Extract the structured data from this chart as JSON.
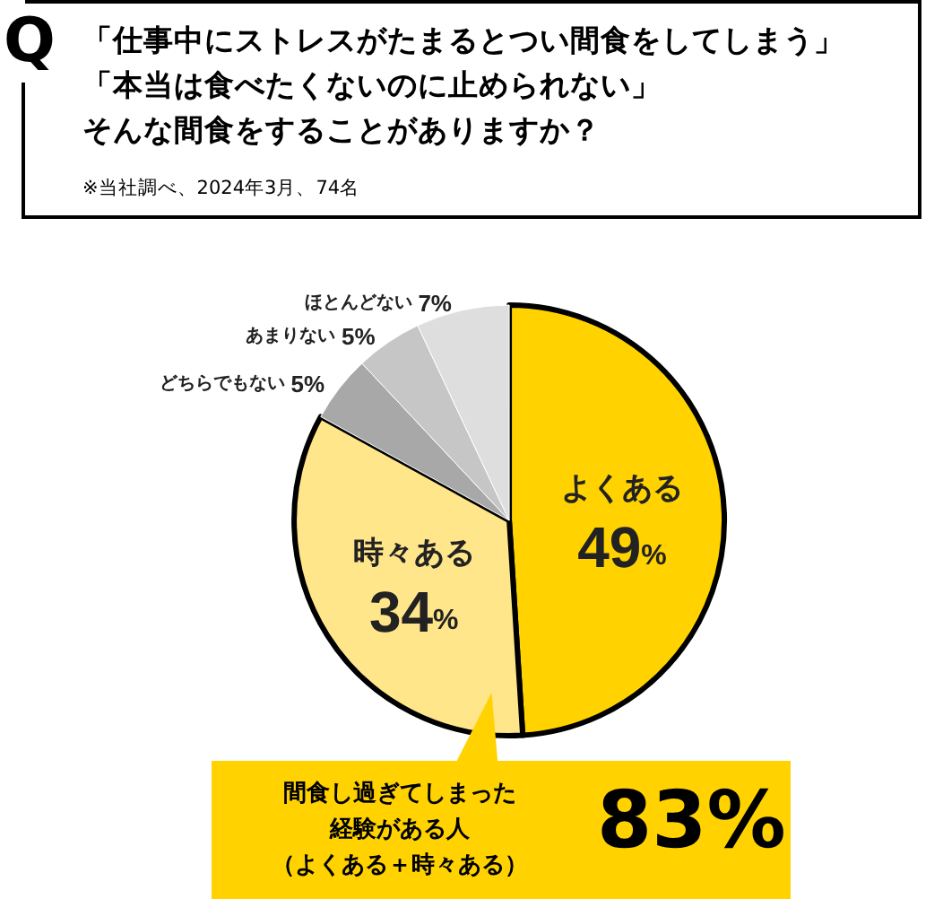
{
  "chart_data": {
    "type": "pie",
    "title": "「仕事中にストレスがたまるとつい間食をしてしまう」「本当は食べたくないのに止められない」そんな間食をすることがありますか？",
    "subtitle": "※当社調べ、2024年3月、74名",
    "categories": [
      "よくある",
      "時々ある",
      "どちらでもない",
      "あまりない",
      "ほとんどない"
    ],
    "values": [
      49,
      34,
      5,
      5,
      7
    ],
    "colors": [
      "#ffd200",
      "#ffe68a",
      "#a8a8a8",
      "#c6c6c6",
      "#dedede"
    ],
    "value_labels": [
      "49%",
      "34%",
      "5%",
      "5%",
      "7%"
    ],
    "legend": false,
    "annotations": [
      "Q",
      "間食し過ぎてしまった経験がある人（よくある＋時々ある）",
      "83%"
    ]
  }
}
